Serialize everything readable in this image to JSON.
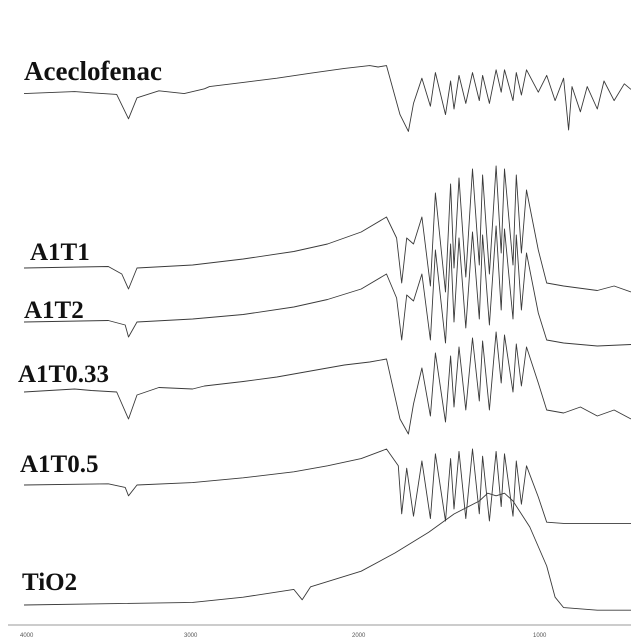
{
  "chart_data": {
    "type": "line",
    "x_axis": {
      "ticks": [
        "4000",
        "3000",
        "2000",
        "1000"
      ],
      "range": [
        4000,
        400
      ],
      "reversed": true
    },
    "grid": false,
    "legend": "none",
    "colors": {
      "trace": "#3a3a3a",
      "axis": "#9a9a9a"
    },
    "series": [
      {
        "name": "Aceclofenac",
        "points": [
          [
            4000,
            0.05
          ],
          [
            3700,
            0.12
          ],
          [
            3600,
            0.08
          ],
          [
            3450,
            0.02
          ],
          [
            3380,
            -0.85
          ],
          [
            3330,
            -0.1
          ],
          [
            3200,
            0.15
          ],
          [
            3050,
            0.05
          ],
          [
            2930,
            0.22
          ],
          [
            2900,
            0.3
          ],
          [
            2700,
            0.45
          ],
          [
            2500,
            0.6
          ],
          [
            2300,
            0.78
          ],
          [
            2100,
            0.95
          ],
          [
            1950,
            1.05
          ],
          [
            1900,
            1.0
          ],
          [
            1850,
            1.05
          ],
          [
            1770,
            -0.7
          ],
          [
            1720,
            -1.3
          ],
          [
            1690,
            -0.3
          ],
          [
            1640,
            0.6
          ],
          [
            1590,
            -0.4
          ],
          [
            1560,
            0.8
          ],
          [
            1500,
            -0.7
          ],
          [
            1470,
            0.5
          ],
          [
            1450,
            -0.5
          ],
          [
            1420,
            0.7
          ],
          [
            1380,
            -0.3
          ],
          [
            1340,
            0.8
          ],
          [
            1300,
            -0.2
          ],
          [
            1280,
            0.7
          ],
          [
            1240,
            -0.3
          ],
          [
            1200,
            0.9
          ],
          [
            1170,
            0.1
          ],
          [
            1150,
            0.9
          ],
          [
            1100,
            -0.2
          ],
          [
            1080,
            0.8
          ],
          [
            1050,
            0.0
          ],
          [
            1020,
            0.9
          ],
          [
            950,
            0.1
          ],
          [
            900,
            0.7
          ],
          [
            850,
            -0.2
          ],
          [
            800,
            0.6
          ],
          [
            770,
            -1.25
          ],
          [
            750,
            0.3
          ],
          [
            700,
            -0.6
          ],
          [
            660,
            0.3
          ],
          [
            600,
            -0.5
          ],
          [
            560,
            0.5
          ],
          [
            500,
            -0.2
          ],
          [
            440,
            0.4
          ],
          [
            400,
            0.2
          ]
        ]
      },
      {
        "name": "A1T1",
        "points": [
          [
            4000,
            0.0
          ],
          [
            3500,
            0.05
          ],
          [
            3420,
            -0.2
          ],
          [
            3380,
            -0.7
          ],
          [
            3330,
            0.0
          ],
          [
            3000,
            0.1
          ],
          [
            2700,
            0.3
          ],
          [
            2400,
            0.55
          ],
          [
            2200,
            0.8
          ],
          [
            2000,
            1.2
          ],
          [
            1850,
            1.7
          ],
          [
            1790,
            1.0
          ],
          [
            1760,
            -0.5
          ],
          [
            1730,
            1.0
          ],
          [
            1690,
            0.8
          ],
          [
            1640,
            1.7
          ],
          [
            1590,
            -0.6
          ],
          [
            1560,
            2.5
          ],
          [
            1500,
            -0.8
          ],
          [
            1470,
            2.8
          ],
          [
            1450,
            0.0
          ],
          [
            1420,
            3.0
          ],
          [
            1380,
            -0.3
          ],
          [
            1340,
            3.3
          ],
          [
            1300,
            0.1
          ],
          [
            1280,
            3.1
          ],
          [
            1240,
            -0.2
          ],
          [
            1200,
            3.4
          ],
          [
            1170,
            0.5
          ],
          [
            1150,
            3.3
          ],
          [
            1100,
            0.1
          ],
          [
            1080,
            3.1
          ],
          [
            1050,
            0.5
          ],
          [
            1020,
            2.6
          ],
          [
            950,
            0.6
          ],
          [
            900,
            -0.5
          ],
          [
            800,
            -0.6
          ],
          [
            600,
            -0.75
          ],
          [
            500,
            -0.6
          ],
          [
            400,
            -0.8
          ]
        ]
      },
      {
        "name": "A1T2",
        "points": [
          [
            4000,
            0.0
          ],
          [
            3500,
            0.05
          ],
          [
            3400,
            -0.1
          ],
          [
            3380,
            -0.5
          ],
          [
            3330,
            0.0
          ],
          [
            3000,
            0.1
          ],
          [
            2700,
            0.25
          ],
          [
            2400,
            0.5
          ],
          [
            2200,
            0.75
          ],
          [
            2000,
            1.1
          ],
          [
            1850,
            1.6
          ],
          [
            1790,
            0.8
          ],
          [
            1760,
            -0.6
          ],
          [
            1730,
            0.9
          ],
          [
            1690,
            0.7
          ],
          [
            1640,
            1.6
          ],
          [
            1590,
            -0.6
          ],
          [
            1560,
            2.4
          ],
          [
            1500,
            -0.7
          ],
          [
            1470,
            2.6
          ],
          [
            1450,
            0.0
          ],
          [
            1420,
            2.8
          ],
          [
            1380,
            -0.2
          ],
          [
            1340,
            3.0
          ],
          [
            1300,
            0.1
          ],
          [
            1280,
            2.9
          ],
          [
            1240,
            -0.1
          ],
          [
            1200,
            3.2
          ],
          [
            1170,
            0.4
          ],
          [
            1150,
            3.1
          ],
          [
            1100,
            0.1
          ],
          [
            1080,
            2.9
          ],
          [
            1050,
            0.4
          ],
          [
            1020,
            2.3
          ],
          [
            950,
            0.3
          ],
          [
            900,
            -0.6
          ],
          [
            800,
            -0.7
          ],
          [
            600,
            -0.8
          ],
          [
            400,
            -0.75
          ]
        ]
      },
      {
        "name": "A1T0.33",
        "points": [
          [
            4000,
            0.0
          ],
          [
            3700,
            0.1
          ],
          [
            3600,
            0.05
          ],
          [
            3450,
            0.0
          ],
          [
            3380,
            -0.9
          ],
          [
            3330,
            -0.1
          ],
          [
            3200,
            0.15
          ],
          [
            3000,
            0.1
          ],
          [
            2930,
            0.2
          ],
          [
            2700,
            0.35
          ],
          [
            2500,
            0.5
          ],
          [
            2300,
            0.7
          ],
          [
            2100,
            0.9
          ],
          [
            1950,
            1.0
          ],
          [
            1850,
            1.1
          ],
          [
            1770,
            -0.9
          ],
          [
            1720,
            -1.4
          ],
          [
            1690,
            -0.4
          ],
          [
            1640,
            0.8
          ],
          [
            1590,
            -0.8
          ],
          [
            1560,
            1.3
          ],
          [
            1500,
            -1.0
          ],
          [
            1470,
            1.2
          ],
          [
            1450,
            -0.5
          ],
          [
            1420,
            1.5
          ],
          [
            1380,
            -0.6
          ],
          [
            1340,
            1.8
          ],
          [
            1300,
            -0.3
          ],
          [
            1280,
            1.7
          ],
          [
            1240,
            -0.6
          ],
          [
            1200,
            2.0
          ],
          [
            1170,
            0.3
          ],
          [
            1150,
            1.9
          ],
          [
            1100,
            0.0
          ],
          [
            1080,
            1.6
          ],
          [
            1050,
            0.2
          ],
          [
            1020,
            1.5
          ],
          [
            950,
            0.3
          ],
          [
            900,
            -0.6
          ],
          [
            800,
            -0.7
          ],
          [
            700,
            -0.5
          ],
          [
            600,
            -0.8
          ],
          [
            500,
            -0.6
          ],
          [
            400,
            -0.9
          ]
        ]
      },
      {
        "name": "A1T0.5",
        "points": [
          [
            4000,
            0.0
          ],
          [
            3500,
            0.05
          ],
          [
            3400,
            -0.1
          ],
          [
            3380,
            -0.45
          ],
          [
            3330,
            0.0
          ],
          [
            3000,
            0.1
          ],
          [
            2700,
            0.3
          ],
          [
            2400,
            0.55
          ],
          [
            2200,
            0.8
          ],
          [
            2000,
            1.1
          ],
          [
            1850,
            1.5
          ],
          [
            1780,
            0.8
          ],
          [
            1760,
            -1.2
          ],
          [
            1730,
            0.7
          ],
          [
            1690,
            -1.3
          ],
          [
            1640,
            1.0
          ],
          [
            1590,
            -1.4
          ],
          [
            1560,
            1.3
          ],
          [
            1500,
            -1.5
          ],
          [
            1470,
            1.1
          ],
          [
            1450,
            -1.0
          ],
          [
            1420,
            1.4
          ],
          [
            1380,
            -1.4
          ],
          [
            1340,
            1.5
          ],
          [
            1300,
            -1.2
          ],
          [
            1280,
            1.2
          ],
          [
            1240,
            -1.5
          ],
          [
            1200,
            1.4
          ],
          [
            1170,
            -0.9
          ],
          [
            1150,
            1.3
          ],
          [
            1100,
            -1.3
          ],
          [
            1080,
            1.0
          ],
          [
            1050,
            -0.8
          ],
          [
            1020,
            0.8
          ],
          [
            950,
            -0.5
          ],
          [
            900,
            -1.55
          ],
          [
            800,
            -1.6
          ],
          [
            600,
            -1.6
          ],
          [
            400,
            -1.6
          ]
        ]
      },
      {
        "name": "TiO2",
        "points": [
          [
            4000,
            0.0
          ],
          [
            3500,
            0.05
          ],
          [
            3000,
            0.1
          ],
          [
            2700,
            0.3
          ],
          [
            2400,
            0.6
          ],
          [
            2350,
            0.2
          ],
          [
            2300,
            0.7
          ],
          [
            2000,
            1.3
          ],
          [
            1800,
            2.0
          ],
          [
            1600,
            2.8
          ],
          [
            1450,
            3.5
          ],
          [
            1300,
            4.0
          ],
          [
            1250,
            4.3
          ],
          [
            1200,
            4.2
          ],
          [
            1150,
            4.3
          ],
          [
            1100,
            4.0
          ],
          [
            1000,
            3.0
          ],
          [
            900,
            1.5
          ],
          [
            850,
            0.3
          ],
          [
            800,
            -0.1
          ],
          [
            600,
            -0.2
          ],
          [
            400,
            -0.2
          ]
        ]
      }
    ]
  }
}
